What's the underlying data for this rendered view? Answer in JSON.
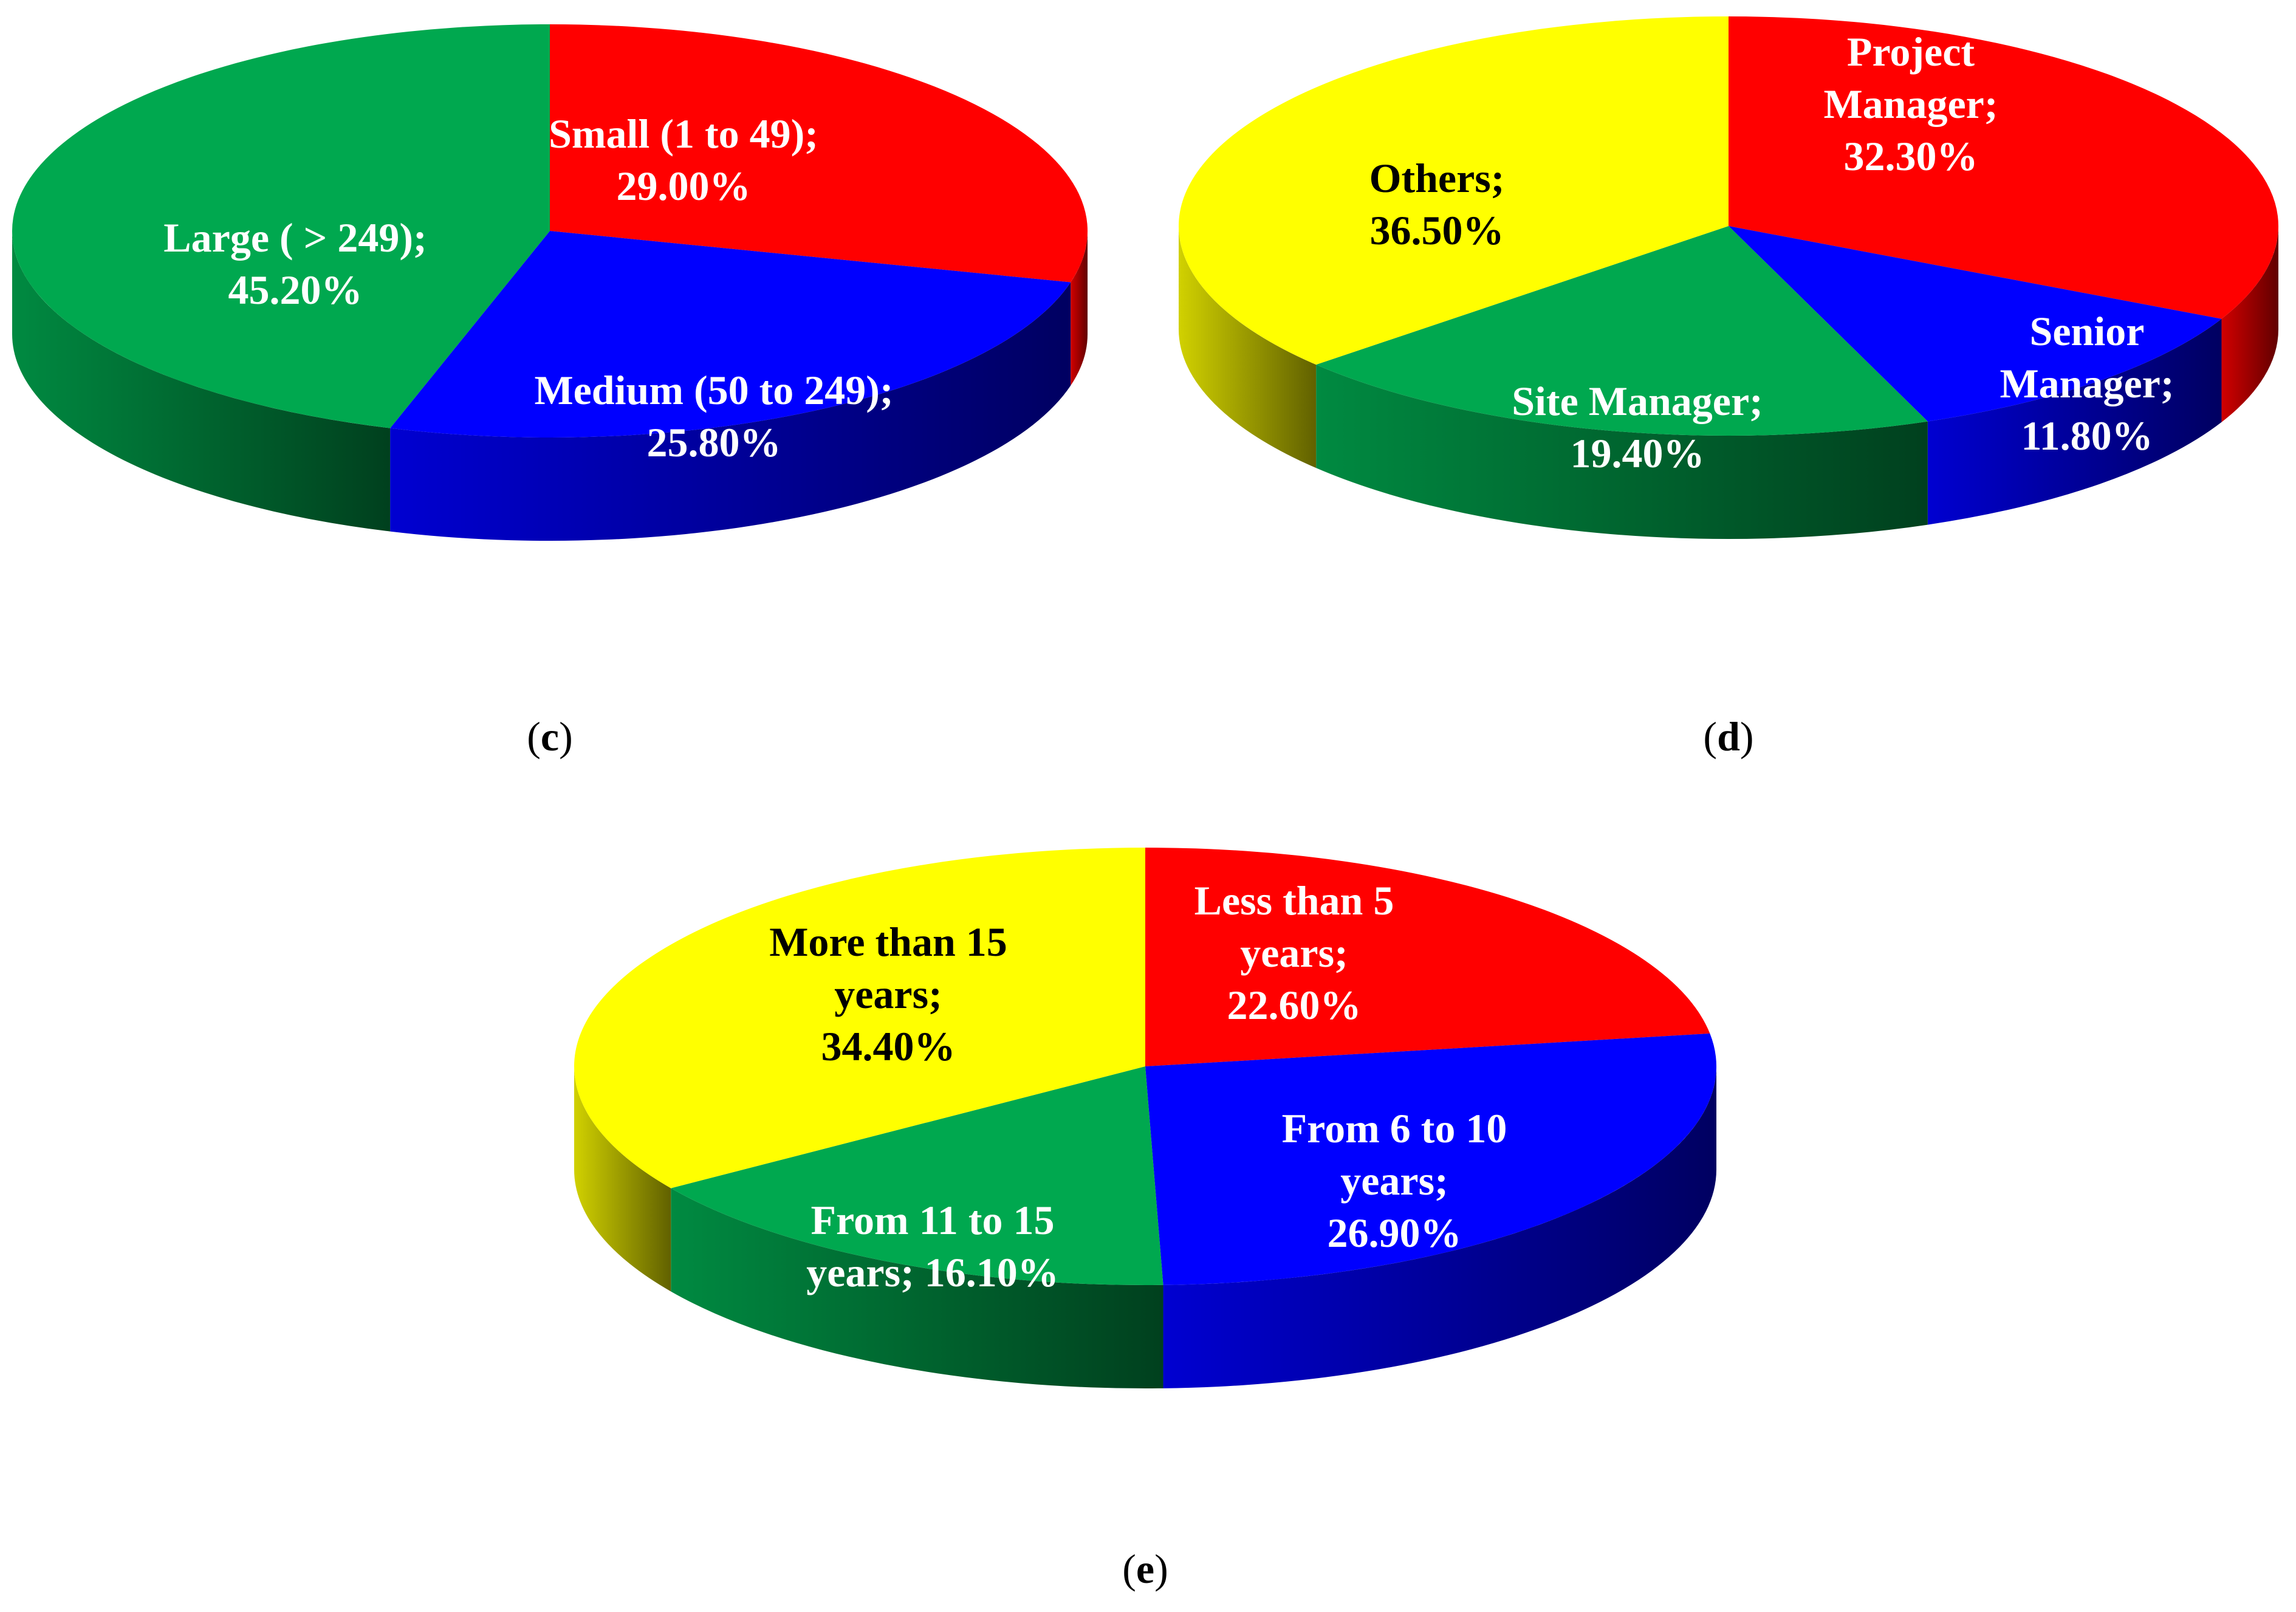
{
  "chart_data": [
    {
      "type": "pie",
      "panel_label": "c",
      "start_angle_deg": -90,
      "slices": [
        {
          "name": "Small (1 to 49)",
          "value": 29.0,
          "label_lines": [
            "Small (1 to 49);",
            "29.00%"
          ],
          "color": "#ff0000",
          "text_color": "#ffffff"
        },
        {
          "name": "Medium (50 to 249)",
          "value": 25.8,
          "label_lines": [
            "Medium (50 to 249);",
            "25.80%"
          ],
          "color": "#0000ff",
          "text_color": "#ffffff"
        },
        {
          "name": "Large ( > 249)",
          "value": 45.2,
          "label_lines": [
            "Large ( > 249);",
            "45.20%"
          ],
          "color": "#00a84f",
          "text_color": "#ffffff"
        }
      ]
    },
    {
      "type": "pie",
      "panel_label": "d",
      "start_angle_deg": -90,
      "slices": [
        {
          "name": "Project Manager",
          "value": 32.3,
          "label_lines": [
            "Project",
            "Manager;",
            "32.30%"
          ],
          "color": "#ff0000",
          "text_color": "#ffffff"
        },
        {
          "name": "Senior Manager",
          "value": 11.8,
          "label_lines": [
            "Senior",
            "Manager;",
            "11.80%"
          ],
          "color": "#0000ff",
          "text_color": "#ffffff"
        },
        {
          "name": "Site Manager",
          "value": 19.4,
          "label_lines": [
            "Site Manager;",
            "19.40%"
          ],
          "color": "#00a84f",
          "text_color": "#ffffff"
        },
        {
          "name": "Others",
          "value": 36.5,
          "label_lines": [
            "Others;",
            "36.50%"
          ],
          "color": "#ffff00",
          "text_color": "#000000"
        }
      ]
    },
    {
      "type": "pie",
      "panel_label": "e",
      "start_angle_deg": -90,
      "slices": [
        {
          "name": "Less than 5 years",
          "value": 22.6,
          "label_lines": [
            "Less than 5",
            "years;",
            "22.60%"
          ],
          "color": "#ff0000",
          "text_color": "#ffffff"
        },
        {
          "name": "From 6 to 10 years",
          "value": 26.9,
          "label_lines": [
            "From 6 to 10",
            "years;",
            "26.90%"
          ],
          "color": "#0000ff",
          "text_color": "#ffffff"
        },
        {
          "name": "From 11 to 15 years",
          "value": 16.1,
          "label_lines": [
            "From 11 to 15",
            "years; 16.10%"
          ],
          "color": "#00a84f",
          "text_color": "#ffffff"
        },
        {
          "name": "More than 15 years",
          "value": 34.4,
          "label_lines": [
            "More than 15",
            "years;",
            "34.40%"
          ],
          "color": "#ffff00",
          "text_color": "#000000"
        }
      ]
    }
  ]
}
